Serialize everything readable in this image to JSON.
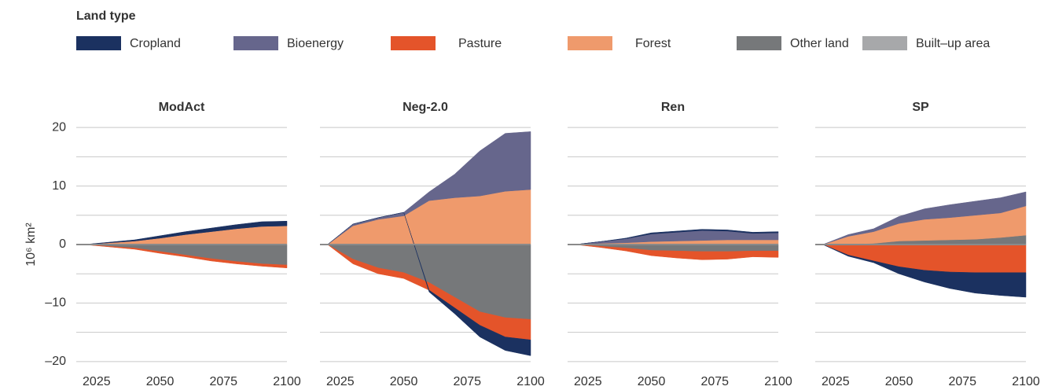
{
  "legend_title": "Land type",
  "chart_data": [
    {
      "type": "area",
      "title": "ModAct",
      "ylabel": "10⁶ km²",
      "x": [
        2020,
        2030,
        2040,
        2050,
        2060,
        2070,
        2080,
        2090,
        2100
      ],
      "xlim": [
        2017,
        2100
      ],
      "xticks": [
        2025,
        2050,
        2075,
        2100
      ],
      "ylim": [
        -21.5,
        21.5
      ],
      "yticks": [
        {
          "value": -20,
          "label": "–20"
        },
        {
          "value": -10,
          "label": "–10"
        },
        0,
        10,
        20
      ],
      "ygrid": [
        -20,
        -15,
        -10,
        -5,
        0,
        5,
        10,
        15,
        20
      ],
      "series": [
        {
          "name": "Cropland",
          "color": "#1b3160",
          "values": [
            0,
            0.1,
            0.2,
            0.4,
            0.5,
            0.6,
            0.7,
            0.8,
            0.8
          ]
        },
        {
          "name": "Bioenergy",
          "color": "#66668c",
          "values": [
            0,
            0,
            0,
            0,
            0,
            0,
            0,
            0,
            0
          ]
        },
        {
          "name": "Pasture",
          "color": "#e4542a",
          "values": [
            0,
            -0.1,
            -0.2,
            -0.3,
            -0.3,
            -0.4,
            -0.4,
            -0.4,
            -0.5
          ]
        },
        {
          "name": "Forest",
          "color": "#ef9a6c",
          "values": [
            0,
            0.3,
            0.6,
            1.1,
            1.7,
            2.2,
            2.7,
            3.1,
            3.2
          ]
        },
        {
          "name": "Other land",
          "color": "#76787a",
          "values": [
            0,
            -0.3,
            -0.6,
            -1.2,
            -1.8,
            -2.4,
            -2.9,
            -3.3,
            -3.5
          ]
        },
        {
          "name": "Built–up area",
          "color": "#a7a8aa",
          "values": [
            0,
            0,
            0,
            0,
            0,
            0,
            0,
            0,
            0
          ]
        }
      ]
    },
    {
      "type": "area",
      "title": "Neg-2.0",
      "x": [
        2020,
        2030,
        2040,
        2050,
        2060,
        2070,
        2080,
        2090,
        2100
      ],
      "xlim": [
        2017,
        2100
      ],
      "xticks": [
        2025,
        2050,
        2075,
        2100
      ],
      "ylim": [
        -21.5,
        21.5
      ],
      "ygrid": [
        -20,
        -15,
        -10,
        -5,
        0,
        5,
        10,
        15,
        20
      ],
      "series": [
        {
          "name": "Cropland",
          "color": "#1b3160",
          "values": [
            0,
            0,
            0,
            0,
            -0.3,
            -1,
            -2,
            -2.3,
            -2.7
          ]
        },
        {
          "name": "Bioenergy",
          "color": "#66668c",
          "values": [
            0,
            0.3,
            0.3,
            0.6,
            1.5,
            4,
            7.7,
            9.9,
            9.9
          ]
        },
        {
          "name": "Pasture",
          "color": "#e4542a",
          "values": [
            0,
            -0.8,
            -1,
            -1,
            -1.3,
            -1.8,
            -2.3,
            -3.3,
            -3.5
          ]
        },
        {
          "name": "Forest",
          "color": "#ef9a6c",
          "values": [
            0,
            3.2,
            4.3,
            4.9,
            7.5,
            8,
            8.3,
            9.1,
            9.4
          ]
        },
        {
          "name": "Other land",
          "color": "#76787a",
          "values": [
            0,
            -2.5,
            -4,
            -4.8,
            -6.5,
            -9,
            -11.5,
            -12.5,
            -12.8
          ]
        },
        {
          "name": "Built–up area",
          "color": "#a7a8aa",
          "values": [
            0,
            0,
            0,
            0,
            0,
            0,
            0,
            0,
            0
          ]
        }
      ]
    },
    {
      "type": "area",
      "title": "Ren",
      "x": [
        2020,
        2030,
        2040,
        2050,
        2060,
        2070,
        2080,
        2090,
        2100
      ],
      "xlim": [
        2017,
        2100
      ],
      "xticks": [
        2025,
        2050,
        2075,
        2100
      ],
      "ylim": [
        -21.5,
        21.5
      ],
      "ygrid": [
        -20,
        -15,
        -10,
        -5,
        0,
        5,
        10,
        15,
        20
      ],
      "series": [
        {
          "name": "Cropland",
          "color": "#1b3160",
          "values": [
            0,
            0,
            0.1,
            0.2,
            0.2,
            0.2,
            0.2,
            0.2,
            0.2
          ]
        },
        {
          "name": "Bioenergy",
          "color": "#66668c",
          "values": [
            0,
            0.3,
            0.7,
            1.3,
            1.5,
            1.7,
            1.5,
            1.1,
            1.2
          ]
        },
        {
          "name": "Pasture",
          "color": "#e4542a",
          "values": [
            0,
            -0.2,
            -0.5,
            -0.9,
            -1.2,
            -1.4,
            -1.3,
            -1,
            -1.1
          ]
        },
        {
          "name": "Forest",
          "color": "#ef9a6c",
          "values": [
            0,
            0.2,
            0.3,
            0.5,
            0.6,
            0.7,
            0.8,
            0.8,
            0.8
          ]
        },
        {
          "name": "Other land",
          "color": "#76787a",
          "values": [
            0,
            -0.3,
            -0.6,
            -1,
            -1.1,
            -1.2,
            -1.2,
            -1.1,
            -1.1
          ]
        },
        {
          "name": "Built–up area",
          "color": "#a7a8aa",
          "values": [
            0,
            0,
            0,
            0,
            0,
            0,
            0,
            0,
            0
          ]
        }
      ]
    },
    {
      "type": "area",
      "title": "SP",
      "x": [
        2020,
        2030,
        2040,
        2050,
        2060,
        2070,
        2080,
        2090,
        2100
      ],
      "xlim": [
        2017,
        2100
      ],
      "xticks": [
        2025,
        2050,
        2075,
        2100
      ],
      "ylim": [
        -21.5,
        21.5
      ],
      "ygrid": [
        -20,
        -15,
        -10,
        -5,
        0,
        5,
        10,
        15,
        20
      ],
      "series": [
        {
          "name": "Cropland",
          "color": "#1b3160",
          "values": [
            0,
            -0.2,
            -0.3,
            -1.2,
            -2,
            -2.8,
            -3.5,
            -3.9,
            -4.2
          ]
        },
        {
          "name": "Bioenergy",
          "color": "#66668c",
          "values": [
            0,
            0.3,
            0.5,
            1.2,
            1.8,
            2.2,
            2.4,
            2.6,
            2.4
          ]
        },
        {
          "name": "Pasture",
          "color": "#e4542a",
          "values": [
            0,
            -1.8,
            -2.8,
            -3.8,
            -4.4,
            -4.7,
            -4.8,
            -4.8,
            -4.8
          ]
        },
        {
          "name": "Forest",
          "color": "#ef9a6c",
          "values": [
            0,
            1.3,
            2,
            3,
            3.6,
            3.8,
            4.1,
            4.2,
            5
          ]
        },
        {
          "name": "Other land",
          "color": "#76787a",
          "values": [
            0,
            0.1,
            0.2,
            0.6,
            0.7,
            0.8,
            0.9,
            1.2,
            1.6
          ]
        },
        {
          "name": "Built–up area",
          "color": "#a7a8aa",
          "values": [
            0,
            0,
            0,
            0,
            0,
            0,
            0,
            0,
            0
          ]
        }
      ]
    }
  ]
}
